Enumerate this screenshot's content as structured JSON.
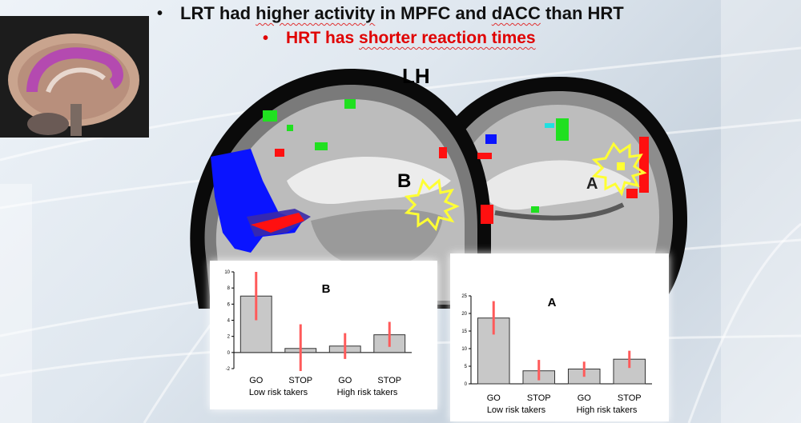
{
  "bullets": {
    "first": {
      "prefix": "LRT had ",
      "em1": "higher activity",
      "mid": " in MPFC and ",
      "em2": "dACC",
      "suffix": " than HRT"
    },
    "second": {
      "prefix": "HRT has ",
      "em1": "shorter reaction times"
    }
  },
  "brain": {
    "hemisphere_label": "LH",
    "region_label_b": "B",
    "region_label_a": "A"
  },
  "colors": {
    "title": "#111111",
    "highlight": "#e00000",
    "blue_region": "#0a14ff",
    "red_region": "#ff1010",
    "green_region": "#20e020",
    "yellow_outline": "#ffff33"
  },
  "chart_data": [
    {
      "type": "bar",
      "title": "B",
      "categories": [
        "GO",
        "STOP",
        "GO",
        "STOP"
      ],
      "groups": [
        "Low risk takers",
        "High risk takers"
      ],
      "values": [
        7.0,
        0.5,
        0.8,
        2.2
      ],
      "error_low": [
        4.0,
        -2.3,
        -0.8,
        0.7
      ],
      "error_high": [
        10.0,
        3.5,
        2.4,
        3.8
      ],
      "ylim": [
        -2,
        10
      ],
      "yticks": [
        "10",
        "8",
        "6",
        "4",
        "2",
        "0",
        "-2"
      ]
    },
    {
      "type": "bar",
      "title": "A",
      "categories": [
        "GO",
        "STOP",
        "GO",
        "STOP"
      ],
      "groups": [
        "Low risk takers",
        "High risk takers"
      ],
      "values": [
        18.7,
        3.7,
        4.2,
        7.0
      ],
      "error_low": [
        14.0,
        1.0,
        2.0,
        4.5
      ],
      "error_high": [
        23.5,
        6.8,
        6.3,
        9.4
      ],
      "ylim": [
        0,
        25
      ],
      "yticks": [
        "25",
        "20",
        "15",
        "10",
        "5",
        "0"
      ]
    }
  ]
}
